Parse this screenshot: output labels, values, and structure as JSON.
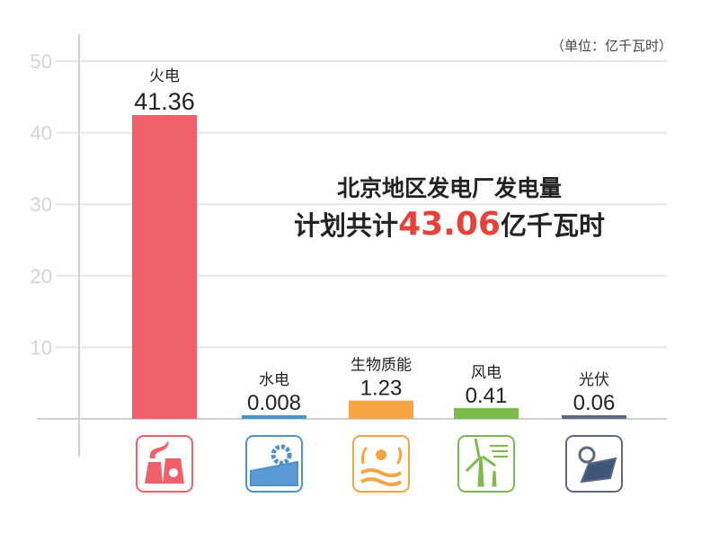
{
  "unit_label": "（单位：亿千瓦时）",
  "headline": {
    "line1": "北京地区发电厂发电量",
    "line2_prefix": "计划共计",
    "line2_value": "43.06",
    "line2_suffix": "亿千瓦时",
    "highlight_color": "#e8413a"
  },
  "chart_data": {
    "type": "bar",
    "categories": [
      "火电",
      "水电",
      "生物质能",
      "风电",
      "光伏"
    ],
    "values": [
      41.36,
      0.008,
      1.23,
      0.41,
      0.06
    ],
    "value_labels": [
      "41.36",
      "0.008",
      "1.23",
      "0.41",
      "0.06"
    ],
    "colors": [
      "#f0606a",
      "#4f92c9",
      "#f5a443",
      "#7cba4e",
      "#5b6a7e"
    ],
    "icons": [
      "nuclear-plant-icon",
      "hydro-dam-icon",
      "biomass-icon",
      "wind-turbine-icon",
      "solar-panel-icon"
    ],
    "yticks": [
      10,
      20,
      30,
      40,
      50
    ],
    "ylim": [
      0,
      50
    ],
    "grid": true,
    "title": "",
    "xlabel": "",
    "ylabel": ""
  }
}
